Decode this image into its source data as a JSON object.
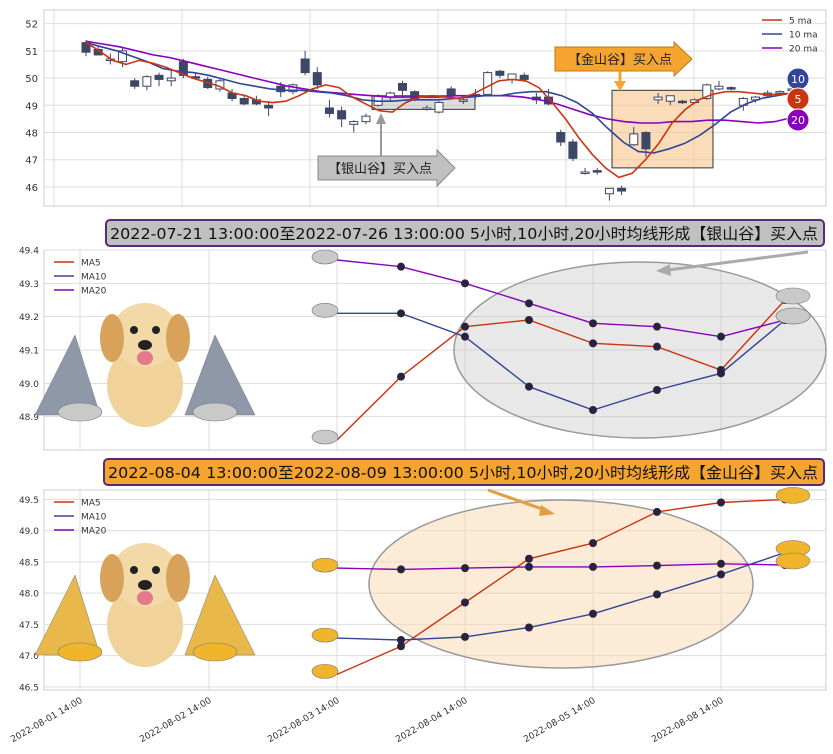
{
  "chart_data": [
    {
      "type": "candlestick",
      "legend": [
        "5 ma",
        "10 ma",
        "20 ma"
      ],
      "legend_position": "top-right",
      "yticks": [
        "46",
        "47",
        "48",
        "49",
        "50",
        "51",
        "52"
      ],
      "ylim": [
        45.3,
        52.5
      ],
      "candles": [
        [
          51.3,
          51.4,
          50.8,
          50.95
        ],
        [
          51.05,
          51.15,
          50.85,
          50.85
        ],
        [
          50.7,
          50.9,
          50.5,
          50.7
        ],
        [
          50.6,
          51.1,
          50.4,
          51.0
        ],
        [
          49.9,
          50.0,
          49.6,
          49.7
        ],
        [
          49.7,
          50.1,
          49.55,
          50.05
        ],
        [
          50.1,
          50.2,
          49.7,
          49.95
        ],
        [
          49.9,
          50.3,
          49.7,
          50.0
        ],
        [
          50.6,
          50.7,
          50.0,
          50.1
        ],
        [
          50.05,
          50.2,
          49.95,
          50.0
        ],
        [
          49.95,
          50.05,
          49.6,
          49.65
        ],
        [
          49.6,
          50.0,
          49.5,
          49.9
        ],
        [
          49.45,
          49.6,
          49.15,
          49.25
        ],
        [
          49.25,
          49.35,
          49.0,
          49.05
        ],
        [
          49.2,
          49.35,
          49.0,
          49.05
        ],
        [
          49.0,
          49.15,
          48.6,
          48.9
        ],
        [
          49.7,
          49.85,
          49.3,
          49.5
        ],
        [
          49.5,
          49.8,
          49.4,
          49.75
        ],
        [
          50.7,
          51.0,
          50.1,
          50.2
        ],
        [
          50.2,
          50.4,
          49.6,
          49.75
        ],
        [
          48.9,
          49.2,
          48.55,
          48.7
        ],
        [
          48.8,
          48.95,
          48.2,
          48.5
        ],
        [
          48.3,
          48.45,
          48.0,
          48.4
        ],
        [
          48.4,
          48.7,
          48.3,
          48.6
        ],
        [
          49.0,
          49.4,
          48.95,
          49.35
        ],
        [
          49.3,
          49.5,
          49.15,
          49.45
        ],
        [
          49.8,
          49.9,
          49.3,
          49.55
        ],
        [
          49.5,
          49.55,
          49.15,
          49.2
        ],
        [
          48.9,
          49.0,
          48.8,
          48.9
        ],
        [
          48.75,
          49.15,
          48.7,
          49.1
        ],
        [
          49.6,
          49.7,
          49.3,
          49.35
        ],
        [
          49.15,
          49.3,
          49.05,
          49.2
        ],
        [
          49.4,
          49.6,
          49.25,
          49.4
        ],
        [
          49.4,
          50.25,
          49.4,
          50.2
        ],
        [
          50.25,
          50.3,
          50.0,
          50.1
        ],
        [
          49.95,
          50.15,
          49.8,
          50.15
        ],
        [
          50.1,
          50.2,
          49.85,
          49.95
        ],
        [
          49.3,
          49.45,
          49.05,
          49.2
        ],
        [
          49.3,
          49.6,
          49.0,
          49.05
        ],
        [
          48.0,
          48.1,
          47.5,
          47.65
        ],
        [
          47.65,
          47.75,
          46.95,
          47.05
        ],
        [
          46.55,
          46.7,
          46.45,
          46.55
        ],
        [
          46.6,
          46.7,
          46.45,
          46.55
        ],
        [
          45.75,
          45.95,
          45.5,
          45.95
        ],
        [
          45.95,
          46.05,
          45.7,
          45.85
        ],
        [
          47.55,
          48.2,
          47.5,
          47.95
        ],
        [
          48.0,
          48.05,
          47.1,
          47.4
        ],
        [
          49.2,
          49.45,
          49.05,
          49.3
        ],
        [
          49.15,
          49.35,
          49.0,
          49.35
        ],
        [
          49.15,
          49.2,
          49.05,
          49.1
        ],
        [
          49.1,
          49.25,
          49.05,
          49.2
        ],
        [
          49.25,
          49.8,
          49.2,
          49.75
        ],
        [
          49.6,
          49.9,
          49.55,
          49.7
        ],
        [
          49.65,
          49.7,
          49.55,
          49.6
        ],
        [
          49.0,
          49.3,
          48.8,
          49.25
        ],
        [
          49.2,
          49.35,
          49.1,
          49.3
        ],
        [
          49.35,
          49.55,
          49.3,
          49.45
        ],
        [
          49.45,
          49.55,
          49.35,
          49.5
        ],
        [
          49.55,
          49.65,
          49.45,
          49.6
        ]
      ],
      "ma5": [
        51.3,
        51.0,
        50.65,
        50.5,
        50.65,
        50.55,
        50.4,
        50.2,
        50.0,
        49.85,
        49.7,
        49.45,
        49.35,
        49.15,
        49.1,
        49.15,
        49.35,
        49.6,
        49.75,
        49.65,
        49.3,
        49.05,
        48.8,
        48.75,
        49.1,
        49.3,
        49.35,
        49.3,
        49.25,
        49.4,
        49.65,
        49.9,
        49.95,
        49.9,
        49.65,
        49.1,
        48.5,
        47.8,
        47.2,
        46.7,
        46.35,
        46.5,
        47.0,
        47.6,
        48.35,
        48.85,
        49.2,
        49.4,
        49.5,
        49.5,
        49.45,
        49.4,
        49.4,
        49.45
      ],
      "ma10": [
        51.3,
        51.15,
        51.0,
        50.8,
        50.6,
        50.35,
        50.25,
        50.2,
        50.1,
        49.95,
        49.8,
        49.7,
        49.6,
        49.55,
        49.55,
        49.5,
        49.45,
        49.35,
        49.2,
        49.15,
        49.15,
        49.2,
        49.2,
        49.2,
        49.25,
        49.3,
        49.35,
        49.35,
        49.45,
        49.5,
        49.5,
        49.35,
        49.1,
        48.7,
        48.15,
        47.65,
        47.3,
        47.25,
        47.4,
        47.6,
        47.9,
        48.3,
        48.75,
        49.05,
        49.25,
        49.35,
        49.45
      ],
      "ma20": [
        51.35,
        51.25,
        51.15,
        51.0,
        50.85,
        50.75,
        50.6,
        50.45,
        50.3,
        50.15,
        50.0,
        49.85,
        49.7,
        49.6,
        49.5,
        49.45,
        49.4,
        49.35,
        49.3,
        49.3,
        49.3,
        49.3,
        49.35,
        49.35,
        49.35,
        49.35,
        49.3,
        49.2,
        49.05,
        48.85,
        48.65,
        48.5,
        48.4,
        48.35,
        48.35,
        48.4,
        48.4,
        48.45,
        48.45,
        48.4,
        48.35,
        48.4,
        48.55
      ],
      "annotations": {
        "silver_label": "【银山谷】买入点",
        "gold_label": "【金山谷】买入点"
      },
      "badges": {
        "ma10": "10",
        "ma5": "5",
        "ma20": "20"
      },
      "colors": {
        "ma5": "#cc3311",
        "ma10": "#334499",
        "ma20": "#8800bb",
        "candle_down": "#3d4766",
        "silver": "#c0c0c0",
        "gold": "#f5a430"
      }
    },
    {
      "type": "line",
      "title": "2022-07-21 13:00:00至2022-07-26 13:00:00 5小时,10小时,20小时均线形成【银山谷】买入点",
      "legend": [
        "MA5",
        "MA10",
        "MA20"
      ],
      "legend_position": "top-left",
      "yticks": [
        "48.9",
        "49.0",
        "49.1",
        "49.2",
        "49.3",
        "49.4"
      ],
      "ylim": [
        48.8,
        49.4
      ],
      "series": [
        {
          "name": "MA5",
          "values": [
            48.83,
            49.02,
            49.17,
            49.19,
            49.12,
            49.11,
            49.04,
            49.25
          ]
        },
        {
          "name": "MA10",
          "values": [
            49.21,
            49.21,
            49.14,
            48.99,
            48.92,
            48.98,
            49.03,
            49.19
          ]
        },
        {
          "name": "MA20",
          "values": [
            49.37,
            49.35,
            49.3,
            49.24,
            49.18,
            49.17,
            49.14,
            49.19
          ]
        }
      ]
    },
    {
      "type": "line",
      "title": "2022-08-04 13:00:00至2022-08-09 13:00:00 5小时,10小时,20小时均线形成【金山谷】买入点",
      "legend": [
        "MA5",
        "MA10",
        "MA20"
      ],
      "legend_position": "top-left",
      "yticks": [
        "46.5",
        "47.0",
        "47.5",
        "48.0",
        "48.5",
        "49.0",
        "49.5"
      ],
      "ylim": [
        46.45,
        49.65
      ],
      "xticks": [
        "2022-08-01 14:00",
        "2022-08-02 14:00",
        "2022-08-03 14:00",
        "2022-08-04 14:00",
        "2022-08-05 14:00",
        "2022-08-08 14:00"
      ],
      "series": [
        {
          "name": "MA5",
          "values": [
            46.7,
            47.15,
            47.85,
            48.55,
            48.8,
            49.3,
            49.45,
            49.5
          ]
        },
        {
          "name": "MA10",
          "values": [
            47.28,
            47.25,
            47.3,
            47.45,
            47.67,
            47.98,
            48.3,
            48.65
          ]
        },
        {
          "name": "MA20",
          "values": [
            48.4,
            48.38,
            48.4,
            48.42,
            48.42,
            48.44,
            48.47,
            48.45
          ]
        }
      ]
    }
  ]
}
